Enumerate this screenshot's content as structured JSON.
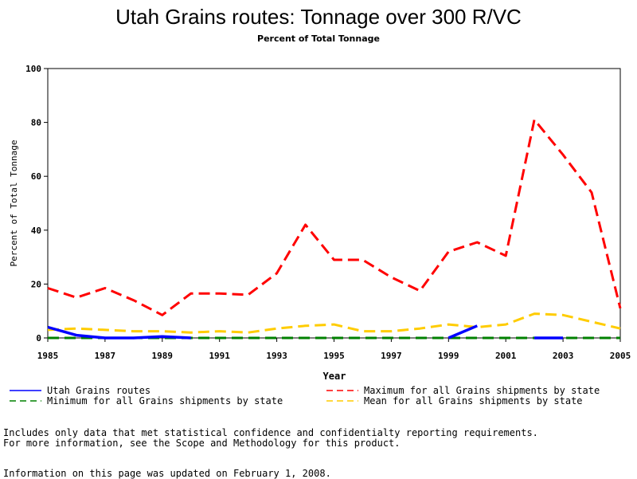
{
  "chart_data": {
    "type": "line",
    "title": "Utah Grains routes: Tonnage over 300 R/VC",
    "subtitle": "Percent of Total Tonnage",
    "xlabel": "Year",
    "ylabel": "Percent of Total Tonnage",
    "xlim": [
      1985,
      2005
    ],
    "ylim": [
      0,
      100
    ],
    "x_ticks": [
      1985,
      1987,
      1989,
      1991,
      1993,
      1995,
      1997,
      1999,
      2001,
      2003,
      2005
    ],
    "y_ticks": [
      0,
      20,
      40,
      60,
      80,
      100
    ],
    "grid": false,
    "legend_position": "bottom",
    "series": [
      {
        "name": "Utah Grains routes",
        "color": "#0000ff",
        "style": "solid",
        "segments": [
          {
            "x": [
              1985,
              1986,
              1987,
              1988,
              1989,
              1990
            ],
            "y": [
              4,
              1,
              0,
              0,
              0.5,
              0
            ]
          },
          {
            "x": [
              1999,
              2000
            ],
            "y": [
              0,
              4.5
            ]
          },
          {
            "x": [
              2002,
              2003
            ],
            "y": [
              0,
              0
            ]
          }
        ]
      },
      {
        "name": "Maximum for all Grains shipments by state",
        "color": "#ff0000",
        "style": "dashed",
        "segments": [
          {
            "x": [
              1985,
              1986,
              1987,
              1988,
              1989,
              1990,
              1991,
              1992,
              1993,
              1994,
              1995,
              1996,
              1997,
              1998,
              1999,
              2000,
              2001,
              2002,
              2003,
              2004,
              2005
            ],
            "y": [
              18.5,
              15,
              18.5,
              14,
              8.5,
              16.5,
              16.5,
              16,
              24,
              42,
              29,
              29,
              22.5,
              17.5,
              32,
              35.5,
              30.5,
              81,
              68,
              54,
              11
            ]
          }
        ]
      },
      {
        "name": "Minimum for all Grains shipments by state",
        "color": "#008000",
        "style": "dashed",
        "segments": [
          {
            "x": [
              1985,
              1986,
              1987,
              1988,
              1989,
              1990,
              1991,
              1992,
              1993,
              1994,
              1995,
              1996,
              1997,
              1998,
              1999,
              2000,
              2001,
              2002,
              2003,
              2004,
              2005
            ],
            "y": [
              0,
              0,
              0,
              0,
              0,
              0,
              0,
              0,
              0,
              0,
              0,
              0,
              0,
              0,
              0,
              0,
              0,
              0,
              0,
              0,
              0
            ]
          }
        ]
      },
      {
        "name": "Mean for all Grains shipments by state",
        "color": "#ffcc00",
        "style": "dashed",
        "segments": [
          {
            "x": [
              1985,
              1986,
              1987,
              1988,
              1989,
              1990,
              1991,
              1992,
              1993,
              1994,
              1995,
              1996,
              1997,
              1998,
              1999,
              2000,
              2001,
              2002,
              2003,
              2004,
              2005
            ],
            "y": [
              3,
              3.5,
              3,
              2.5,
              2.5,
              2,
              2.5,
              2,
              3.5,
              4.5,
              5,
              2.5,
              2.5,
              3.5,
              5,
              4,
              5,
              9,
              8.5,
              6,
              3.5
            ]
          }
        ]
      }
    ]
  },
  "notes": {
    "line1": "Includes only data that met statistical confidence and confidentialty reporting requirements.",
    "line2": "For more information, see the Scope and Methodology for this product.",
    "updated": "Information on this page was updated on February 1, 2008."
  }
}
